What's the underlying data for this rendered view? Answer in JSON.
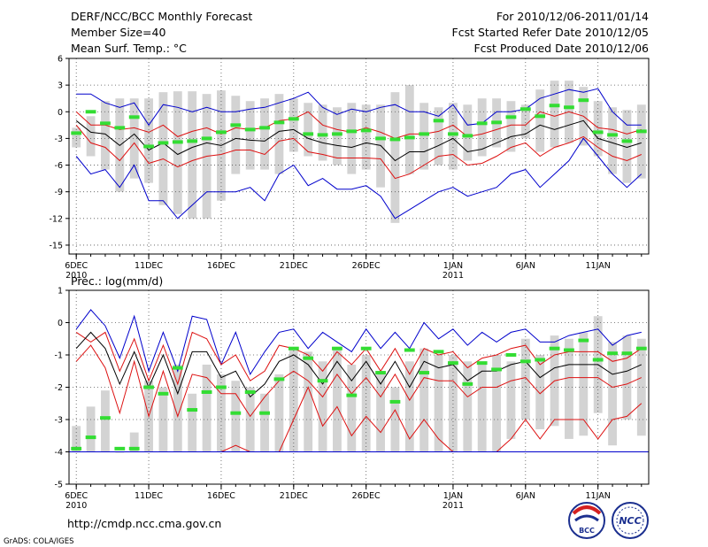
{
  "header": {
    "title": "DERF/NCC/BCC Monthly Forecast",
    "member_size": "Member Size=40",
    "variable": "Mean Surf. Temp.: °C",
    "period": "For 2010/12/06-2011/01/14",
    "refer_date": "Fcst Started Refer Date 2010/12/05",
    "produced_date": "Fcst Produced Date 2010/12/06"
  },
  "footer": {
    "url": "http://cmdp.ncc.cma.gov.cn",
    "credit": "GrADS: COLA/IGES",
    "logo_bcc": "BCC",
    "logo_ncc": "NCC"
  },
  "colors": {
    "bar": "#d3d3d3",
    "green": "#33dd33",
    "blue": "#0000cc",
    "red": "#dd1111",
    "black": "#000000"
  },
  "chart_data": [
    {
      "type": "line",
      "title": "Mean Surf. Temp.: °C",
      "ylabel": "°C",
      "ylim": [
        -16,
        6
      ],
      "yticks": [
        "6",
        "3",
        "0",
        "-3",
        "-6",
        "-9",
        "-12",
        "-15"
      ],
      "ytick_values": [
        6,
        3,
        0,
        -3,
        -6,
        -9,
        -12,
        -15
      ],
      "x_tick_labels": [
        {
          "day": 0,
          "label": "6DEC",
          "sub": "2010"
        },
        {
          "day": 5,
          "label": "11DEC",
          "sub": ""
        },
        {
          "day": 10,
          "label": "16DEC",
          "sub": ""
        },
        {
          "day": 15,
          "label": "21DEC",
          "sub": ""
        },
        {
          "day": 20,
          "label": "26DEC",
          "sub": ""
        },
        {
          "day": 26,
          "label": "1JAN",
          "sub": "2011"
        },
        {
          "day": 31,
          "label": "6JAN",
          "sub": ""
        },
        {
          "day": 36,
          "label": "11JAN",
          "sub": ""
        }
      ],
      "days": 40,
      "bar_top": [
        -1.8,
        -0.5,
        1.2,
        1.5,
        1.5,
        1.5,
        2.2,
        2.3,
        2.3,
        2.0,
        2.4,
        1.8,
        1.2,
        1.5,
        2.0,
        1.5,
        1.0,
        0.8,
        0.5,
        1.0,
        0.8,
        0.8,
        2.2,
        3.0,
        1.0,
        0.5,
        1.0,
        0.8,
        1.5,
        1.5,
        1.2,
        0.8,
        2.5,
        3.5,
        3.5,
        2.8,
        1.2,
        0.5,
        0.2,
        0.8
      ],
      "bar_bottom": [
        -4.0,
        -5.0,
        -6.5,
        -9.0,
        -7.5,
        -8.0,
        -10.5,
        -11.5,
        -12.0,
        -12.0,
        -10.0,
        -7.0,
        -6.5,
        -6.5,
        -7.0,
        -4.5,
        -5.0,
        -5.5,
        -6.0,
        -7.0,
        -6.5,
        -8.5,
        -12.5,
        -7.0,
        -6.5,
        -6.0,
        -6.5,
        -5.5,
        -5.0,
        -4.0,
        -4.5,
        -3.0,
        -4.5,
        -4.0,
        -3.5,
        -3.8,
        -5.0,
        -7.0,
        -8.0,
        -7.5
      ],
      "green": [
        -2.4,
        0.0,
        -1.3,
        -1.8,
        -0.6,
        -3.9,
        -3.5,
        -3.4,
        -3.3,
        -3.0,
        -2.3,
        -1.5,
        -2.0,
        -1.8,
        -1.2,
        -0.8,
        -2.5,
        -2.6,
        -2.5,
        -2.2,
        -2.1,
        -3.0,
        -3.1,
        -2.9,
        -2.5,
        -1.0,
        -2.5,
        -2.7,
        -1.3,
        -1.2,
        -0.6,
        0.3,
        -0.5,
        0.7,
        0.5,
        1.3,
        -2.3,
        -2.6,
        -3.3,
        -2.2
      ],
      "blue_upper": [
        2.0,
        2.0,
        1.0,
        0.5,
        1.0,
        -1.5,
        0.8,
        0.5,
        0.0,
        0.5,
        0.0,
        0.0,
        0.3,
        0.5,
        1.0,
        1.5,
        2.2,
        0.5,
        -0.3,
        0.3,
        0.0,
        0.5,
        0.8,
        0.0,
        0.0,
        -0.5,
        0.8,
        -1.5,
        -1.3,
        0.0,
        0.0,
        0.3,
        1.5,
        2.0,
        2.5,
        2.2,
        2.6,
        0.0,
        -1.5,
        -1.5
      ],
      "blue_lower": [
        -5.0,
        -7.0,
        -6.5,
        -8.5,
        -6.0,
        -10.0,
        -10.0,
        -12.0,
        -10.5,
        -9.0,
        -9.0,
        -9.0,
        -8.5,
        -10.0,
        -7.0,
        -6.0,
        -8.3,
        -7.5,
        -8.7,
        -8.7,
        -8.3,
        -9.5,
        -12.0,
        -11.0,
        -10.0,
        -9.0,
        -8.5,
        -9.5,
        -9.0,
        -8.5,
        -7.0,
        -6.5,
        -8.5,
        -7.0,
        -5.5,
        -3.0,
        -5.0,
        -7.0,
        -8.5,
        -7.0
      ],
      "red_upper": [
        0.0,
        -1.5,
        -1.5,
        -2.0,
        -1.8,
        -2.3,
        -1.5,
        -2.8,
        -2.2,
        -1.8,
        -2.5,
        -1.8,
        -2.0,
        -1.8,
        -1.0,
        -0.8,
        0.0,
        -1.5,
        -2.0,
        -2.3,
        -1.8,
        -2.3,
        -3.0,
        -2.5,
        -2.5,
        -2.2,
        -1.5,
        -2.8,
        -2.5,
        -2.0,
        -1.5,
        -1.5,
        0.0,
        -0.5,
        0.0,
        -0.5,
        -1.8,
        -2.0,
        -2.5,
        -2.0
      ],
      "red_lower": [
        -1.5,
        -3.5,
        -4.0,
        -5.5,
        -3.5,
        -5.8,
        -5.3,
        -6.2,
        -5.5,
        -5.0,
        -4.8,
        -4.3,
        -4.3,
        -4.8,
        -3.3,
        -3.0,
        -4.5,
        -4.8,
        -5.2,
        -5.2,
        -5.2,
        -5.3,
        -7.5,
        -7.0,
        -6.0,
        -5.0,
        -4.8,
        -6.0,
        -5.8,
        -5.0,
        -4.0,
        -3.5,
        -5.0,
        -4.0,
        -3.5,
        -2.8,
        -4.0,
        -5.0,
        -5.5,
        -4.8
      ],
      "mean": [
        -1.0,
        -2.3,
        -2.5,
        -3.8,
        -2.5,
        -4.3,
        -3.5,
        -4.8,
        -4.0,
        -3.5,
        -3.8,
        -3.0,
        -3.2,
        -3.3,
        -2.2,
        -2.0,
        -3.0,
        -3.5,
        -3.8,
        -4.0,
        -3.5,
        -3.8,
        -5.5,
        -4.5,
        -4.5,
        -3.8,
        -3.0,
        -4.5,
        -4.2,
        -3.5,
        -2.8,
        -2.5,
        -1.5,
        -2.0,
        -1.5,
        -1.0,
        -3.0,
        -3.5,
        -4.0,
        -3.5
      ]
    },
    {
      "type": "line",
      "title": "Prec.: log(mm/d)",
      "ylabel": "log(mm/d)",
      "ylim": [
        -5,
        1
      ],
      "yticks": [
        "1",
        "0",
        "-1",
        "-2",
        "-3",
        "-4",
        "-5"
      ],
      "ytick_values": [
        1,
        0,
        -1,
        -2,
        -3,
        -4,
        -5
      ],
      "x_tick_labels": [
        {
          "day": 0,
          "label": "6DEC",
          "sub": "2010"
        },
        {
          "day": 5,
          "label": "11DEC",
          "sub": ""
        },
        {
          "day": 10,
          "label": "16DEC",
          "sub": ""
        },
        {
          "day": 15,
          "label": "21DEC",
          "sub": ""
        },
        {
          "day": 20,
          "label": "26DEC",
          "sub": ""
        },
        {
          "day": 26,
          "label": "1JAN",
          "sub": "2011"
        },
        {
          "day": 31,
          "label": "6JAN",
          "sub": ""
        },
        {
          "day": 36,
          "label": "11JAN",
          "sub": ""
        }
      ],
      "days": 40,
      "bar_top": [
        -3.2,
        -2.6,
        -2.1,
        -4.0,
        -3.4,
        -1.8,
        -2.0,
        -1.3,
        -2.2,
        -1.3,
        -1.6,
        -1.8,
        -2.0,
        -2.2,
        -1.6,
        -0.8,
        -0.9,
        -1.2,
        -0.8,
        -1.3,
        -1.0,
        -1.5,
        -2.0,
        -1.2,
        -0.8,
        -1.0,
        -1.0,
        -1.2,
        -1.3,
        -1.0,
        -1.2,
        -0.5,
        -1.0,
        -0.4,
        -0.5,
        -0.3,
        0.2,
        -0.6,
        -0.4,
        -0.5
      ],
      "bar_bottom": [
        -4.0,
        -4.0,
        -4.0,
        -4.0,
        -4.0,
        -4.0,
        -4.0,
        -4.0,
        -4.0,
        -4.0,
        -4.0,
        -4.0,
        -4.0,
        -4.0,
        -4.0,
        -4.0,
        -4.0,
        -4.0,
        -4.0,
        -4.0,
        -4.0,
        -4.0,
        -4.0,
        -4.0,
        -4.0,
        -4.0,
        -4.0,
        -4.0,
        -4.0,
        -4.0,
        -3.6,
        -3.0,
        -3.3,
        -3.2,
        -3.6,
        -3.5,
        -2.8,
        -3.8,
        -3.0,
        -3.5
      ],
      "green": [
        -3.9,
        -3.55,
        -2.95,
        -3.9,
        -3.9,
        -2.0,
        -2.2,
        -1.4,
        -2.7,
        -2.15,
        -2.0,
        -2.8,
        -2.15,
        -2.8,
        -1.75,
        -0.8,
        -1.1,
        -1.8,
        -0.8,
        -2.25,
        -0.8,
        -1.55,
        -2.45,
        -0.85,
        -1.55,
        -0.9,
        -1.25,
        -1.9,
        -1.25,
        -1.45,
        -1.0,
        -1.2,
        -1.15,
        -0.8,
        -0.85,
        -0.55,
        -1.15,
        -0.95,
        -0.95,
        -0.8
      ],
      "blue_upper": [
        -0.2,
        0.4,
        -0.1,
        -1.1,
        0.2,
        -1.5,
        -0.3,
        -1.5,
        0.2,
        0.1,
        -1.3,
        -0.3,
        -1.6,
        -0.9,
        -0.3,
        -0.2,
        -0.8,
        -0.3,
        -0.6,
        -0.9,
        -0.2,
        -0.8,
        -0.3,
        -0.8,
        0.0,
        -0.5,
        -0.2,
        -0.7,
        -0.3,
        -0.6,
        -0.3,
        -0.2,
        -0.6,
        -0.6,
        -0.4,
        -0.3,
        -0.2,
        -0.7,
        -0.4,
        -0.3
      ],
      "red_upper": [
        -0.3,
        -0.6,
        -0.3,
        -1.5,
        -0.5,
        -1.8,
        -0.7,
        -1.9,
        -0.3,
        -0.5,
        -1.3,
        -1.0,
        -1.8,
        -1.5,
        -0.7,
        -0.8,
        -1.0,
        -1.5,
        -0.9,
        -1.3,
        -0.8,
        -1.5,
        -0.8,
        -1.6,
        -0.8,
        -1.0,
        -0.9,
        -1.4,
        -1.1,
        -1.0,
        -0.8,
        -0.7,
        -1.3,
        -1.0,
        -0.9,
        -0.9,
        -0.9,
        -1.2,
        -1.1,
        -0.8
      ],
      "red_lower": [
        -1.2,
        -0.7,
        -1.4,
        -2.8,
        -1.2,
        -2.9,
        -1.5,
        -2.9,
        -1.6,
        -1.7,
        -2.2,
        -2.2,
        -2.9,
        -2.3,
        -1.8,
        -1.5,
        -1.8,
        -2.3,
        -1.6,
        -2.2,
        -1.7,
        -2.3,
        -1.6,
        -2.4,
        -1.7,
        -1.8,
        -1.8,
        -2.3,
        -2.0,
        -2.0,
        -1.8,
        -1.7,
        -2.2,
        -1.8,
        -1.7,
        -1.7,
        -1.7,
        -2.0,
        -1.9,
        -1.7
      ],
      "red_bottom": [
        -4.0,
        -4.0,
        -4.0,
        -4.0,
        -4.0,
        -4.0,
        -4.0,
        -4.0,
        -4.0,
        -4.0,
        -4.0,
        -3.8,
        -4.0,
        -4.0,
        -4.0,
        -3.0,
        -2.0,
        -3.2,
        -2.6,
        -3.5,
        -2.9,
        -3.4,
        -2.7,
        -3.6,
        -3.0,
        -3.6,
        -4.0,
        -4.0,
        -4.0,
        -4.0,
        -3.6,
        -3.0,
        -3.6,
        -3.0,
        -3.0,
        -3.0,
        -3.6,
        -3.0,
        -2.9,
        -2.5
      ],
      "mean": [
        -0.8,
        -0.3,
        -0.8,
        -1.9,
        -0.9,
        -2.0,
        -1.0,
        -2.2,
        -0.9,
        -0.9,
        -1.7,
        -1.5,
        -2.3,
        -1.9,
        -1.2,
        -1.0,
        -1.3,
        -1.9,
        -1.2,
        -1.8,
        -1.2,
        -1.9,
        -1.2,
        -2.0,
        -1.2,
        -1.4,
        -1.3,
        -1.8,
        -1.5,
        -1.5,
        -1.3,
        -1.2,
        -1.7,
        -1.4,
        -1.3,
        -1.3,
        -1.3,
        -1.6,
        -1.5,
        -1.3
      ]
    }
  ]
}
